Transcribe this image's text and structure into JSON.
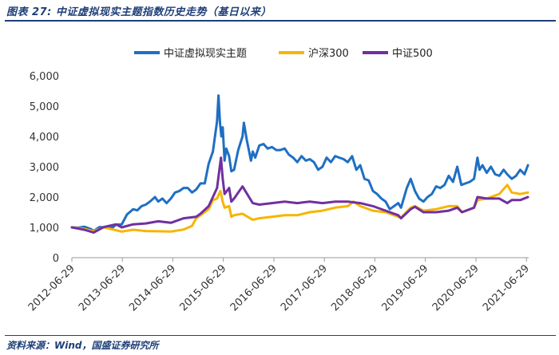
{
  "header": {
    "title": "图表 27:  中证虚拟现实主题指数历史走势（基日以来）"
  },
  "footer": {
    "source": "资料来源：Wind，国盛证券研究所"
  },
  "chart_data": {
    "type": "line",
    "title": "",
    "xlabel": "",
    "ylabel": "",
    "ylim": [
      0,
      6000
    ],
    "yticks": [
      0,
      1000,
      2000,
      3000,
      4000,
      5000,
      6000
    ],
    "ytick_labels": [
      "0",
      "1,000",
      "2,000",
      "3,000",
      "4,000",
      "5,000",
      "6,000"
    ],
    "xlim": [
      "2012-06-29",
      "2021-07-15"
    ],
    "xticks": [
      "2012-06-29",
      "2013-06-29",
      "2014-06-29",
      "2015-06-29",
      "2016-06-29",
      "2017-06-29",
      "2018-06-29",
      "2019-06-29",
      "2020-06-29",
      "2021-06-29"
    ],
    "grid": false,
    "legend_position": "top-center",
    "series": [
      {
        "name": "中证虚拟现实主题",
        "color": "#1f6fc3",
        "x": [
          "2012-06-29",
          "2012-08-15",
          "2012-09-27",
          "2012-11-15",
          "2012-12-03",
          "2013-01-15",
          "2013-02-15",
          "2013-03-15",
          "2013-04-15",
          "2013-05-15",
          "2013-06-25",
          "2013-08-01",
          "2013-09-15",
          "2013-10-15",
          "2013-11-15",
          "2013-12-15",
          "2014-01-15",
          "2014-02-20",
          "2014-03-15",
          "2014-04-15",
          "2014-05-15",
          "2014-06-15",
          "2014-07-15",
          "2014-08-15",
          "2014-09-15",
          "2014-10-15",
          "2014-11-15",
          "2014-12-15",
          "2015-01-15",
          "2015-02-15",
          "2015-03-15",
          "2015-04-15",
          "2015-05-15",
          "2015-05-25",
          "2015-06-05",
          "2015-06-15",
          "2015-06-25",
          "2015-07-08",
          "2015-07-20",
          "2015-08-10",
          "2015-08-26",
          "2015-09-15",
          "2015-10-15",
          "2015-11-15",
          "2015-11-25",
          "2015-12-15",
          "2016-01-15",
          "2016-01-28",
          "2016-02-15",
          "2016-03-15",
          "2016-04-15",
          "2016-05-15",
          "2016-06-15",
          "2016-07-15",
          "2016-08-15",
          "2016-09-15",
          "2016-10-15",
          "2016-11-15",
          "2016-12-15",
          "2017-01-15",
          "2017-02-15",
          "2017-03-15",
          "2017-04-15",
          "2017-05-15",
          "2017-06-15",
          "2017-07-15",
          "2017-08-15",
          "2017-09-15",
          "2017-10-15",
          "2017-11-15",
          "2017-12-15",
          "2018-01-15",
          "2018-02-15",
          "2018-03-15",
          "2018-04-15",
          "2018-05-15",
          "2018-06-15",
          "2018-07-15",
          "2018-08-15",
          "2018-09-15",
          "2018-10-15",
          "2018-11-15",
          "2018-12-15",
          "2019-01-04",
          "2019-02-15",
          "2019-03-15",
          "2019-04-15",
          "2019-05-15",
          "2019-06-15",
          "2019-07-15",
          "2019-08-15",
          "2019-09-15",
          "2019-10-15",
          "2019-11-15",
          "2019-12-15",
          "2020-01-15",
          "2020-02-15",
          "2020-03-15",
          "2020-04-15",
          "2020-05-15",
          "2020-06-15",
          "2020-07-10",
          "2020-07-25",
          "2020-08-15",
          "2020-09-15",
          "2020-10-15",
          "2020-11-15",
          "2020-12-15",
          "2021-01-15",
          "2021-02-10",
          "2021-03-15",
          "2021-04-15",
          "2021-05-15",
          "2021-06-15",
          "2021-07-10"
        ],
        "values": [
          1000,
          990,
          1020,
          940,
          880,
          1010,
          1000,
          1020,
          980,
          1090,
          1100,
          1420,
          1600,
          1560,
          1700,
          1750,
          1850,
          2000,
          1850,
          1950,
          1800,
          1950,
          2150,
          2200,
          2300,
          2300,
          2150,
          2250,
          2450,
          2450,
          3100,
          3500,
          4500,
          5350,
          4450,
          4000,
          4300,
          3200,
          3600,
          3350,
          2850,
          2900,
          3550,
          4000,
          4450,
          3900,
          3200,
          3500,
          3300,
          3700,
          3750,
          3600,
          3650,
          3550,
          3550,
          3600,
          3400,
          3300,
          3150,
          3350,
          3200,
          3250,
          3150,
          2900,
          3000,
          3300,
          3150,
          3350,
          3300,
          3250,
          3150,
          3350,
          2900,
          3050,
          2600,
          2550,
          2200,
          2100,
          1950,
          1850,
          1600,
          1700,
          1800,
          1650,
          2300,
          2600,
          2200,
          1950,
          1850,
          2000,
          2100,
          2350,
          2300,
          2400,
          2700,
          2500,
          3000,
          2400,
          2450,
          2500,
          2600,
          3300,
          2900,
          3050,
          2800,
          3000,
          2750,
          2700,
          2900,
          2750,
          2600,
          2700,
          2900,
          2750,
          3050
        ]
      },
      {
        "name": "沪深300",
        "color": "#f7b500",
        "x": [
          "2012-06-29",
          "2012-09-27",
          "2012-12-03",
          "2013-02-15",
          "2013-06-25",
          "2013-09-15",
          "2013-12-15",
          "2014-03-15",
          "2014-06-15",
          "2014-09-15",
          "2014-11-15",
          "2014-12-15",
          "2015-01-15",
          "2015-03-15",
          "2015-04-15",
          "2015-05-15",
          "2015-06-08",
          "2015-06-25",
          "2015-07-08",
          "2015-08-10",
          "2015-08-26",
          "2015-09-15",
          "2015-11-15",
          "2016-01-28",
          "2016-03-15",
          "2016-06-15",
          "2016-09-15",
          "2016-12-15",
          "2017-03-15",
          "2017-06-15",
          "2017-09-15",
          "2017-12-15",
          "2018-01-25",
          "2018-03-15",
          "2018-06-15",
          "2018-09-15",
          "2018-12-15",
          "2019-01-04",
          "2019-03-15",
          "2019-04-15",
          "2019-06-15",
          "2019-09-15",
          "2019-12-15",
          "2020-02-15",
          "2020-03-20",
          "2020-06-15",
          "2020-07-10",
          "2020-09-15",
          "2020-12-15",
          "2021-02-10",
          "2021-03-15",
          "2021-05-15",
          "2021-07-10"
        ],
        "values": [
          1000,
          950,
          870,
          1000,
          860,
          920,
          880,
          870,
          860,
          930,
          1050,
          1300,
          1400,
          1600,
          1900,
          1950,
          2200,
          1850,
          1650,
          1700,
          1350,
          1400,
          1450,
          1250,
          1300,
          1350,
          1400,
          1400,
          1500,
          1550,
          1650,
          1700,
          1850,
          1700,
          1550,
          1500,
          1350,
          1320,
          1650,
          1700,
          1550,
          1600,
          1700,
          1700,
          1500,
          1650,
          1900,
          1950,
          2100,
          2400,
          2150,
          2100,
          2150
        ]
      },
      {
        "name": "中证500",
        "color": "#7030a0",
        "x": [
          "2012-06-29",
          "2012-09-27",
          "2012-12-03",
          "2013-02-15",
          "2013-05-15",
          "2013-06-25",
          "2013-09-15",
          "2013-12-15",
          "2014-03-15",
          "2014-06-15",
          "2014-09-15",
          "2014-12-15",
          "2015-01-15",
          "2015-03-15",
          "2015-04-15",
          "2015-05-15",
          "2015-06-12",
          "2015-06-25",
          "2015-07-08",
          "2015-08-10",
          "2015-08-26",
          "2015-09-15",
          "2015-11-15",
          "2016-01-28",
          "2016-03-15",
          "2016-06-15",
          "2016-09-15",
          "2016-12-15",
          "2017-03-15",
          "2017-06-15",
          "2017-09-15",
          "2017-12-15",
          "2018-03-15",
          "2018-06-15",
          "2018-09-15",
          "2018-12-15",
          "2019-01-04",
          "2019-03-15",
          "2019-04-15",
          "2019-06-15",
          "2019-09-15",
          "2019-12-15",
          "2020-02-15",
          "2020-03-20",
          "2020-06-15",
          "2020-07-10",
          "2020-09-15",
          "2020-12-15",
          "2021-02-10",
          "2021-03-15",
          "2021-05-15",
          "2021-07-10"
        ],
        "values": [
          1000,
          920,
          830,
          1010,
          1100,
          1000,
          1100,
          1130,
          1200,
          1150,
          1300,
          1350,
          1450,
          1700,
          2000,
          2300,
          3300,
          2600,
          2100,
          2300,
          1850,
          1950,
          2350,
          1800,
          1750,
          1800,
          1850,
          1800,
          1850,
          1800,
          1850,
          1850,
          1800,
          1700,
          1550,
          1400,
          1300,
          1600,
          1680,
          1500,
          1500,
          1550,
          1650,
          1500,
          1650,
          2000,
          1950,
          1950,
          1800,
          1900,
          1900,
          2000
        ]
      }
    ]
  }
}
